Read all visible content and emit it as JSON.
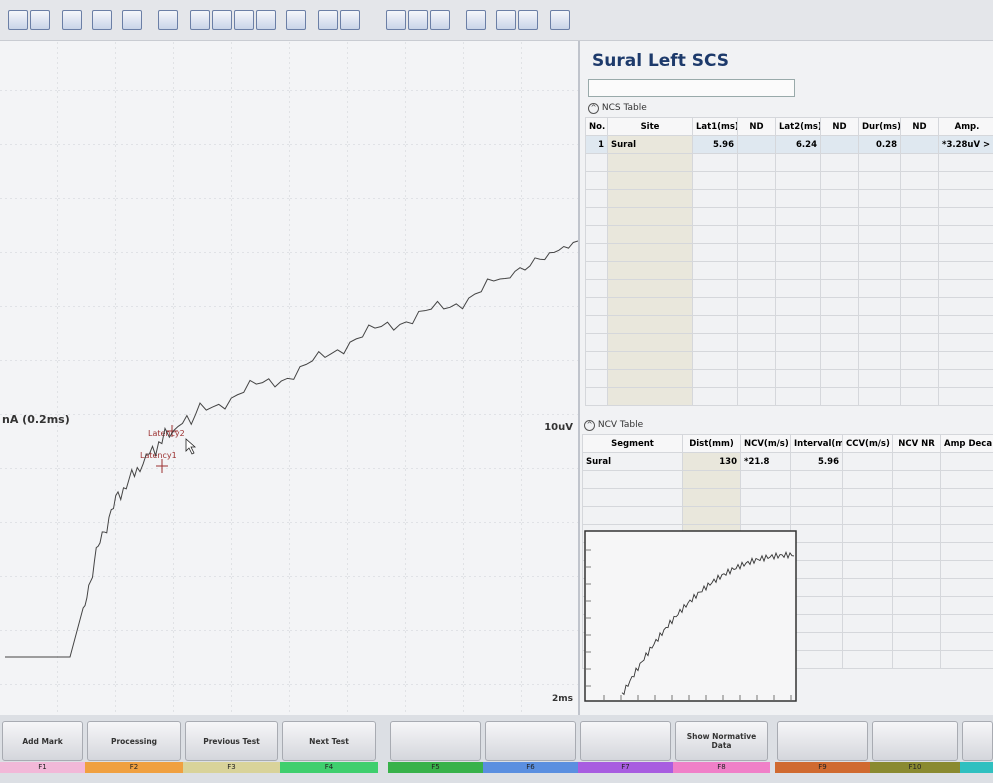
{
  "waveform": {
    "scale_label": "nA (0.2ms)",
    "amplitude_label": "10uV",
    "time_label": "2ms",
    "markers": [
      "Latency2",
      "Latency1"
    ]
  },
  "panel": {
    "title": "Sural Left SCS",
    "ncs_table": {
      "title": "NCS Table",
      "columns": [
        "No.",
        "Site",
        "Lat1(ms)",
        "ND",
        "Lat2(ms)",
        "ND",
        "Dur(ms)",
        "ND",
        "Amp."
      ],
      "rows": [
        {
          "no": 1,
          "site": "Sural",
          "lat1": 5.96,
          "lat2": 6.24,
          "dur": 0.28,
          "amp": "*3.28uV >"
        }
      ]
    },
    "ncv_table": {
      "title": "NCV Table",
      "columns": [
        "Segment",
        "Dist(mm)",
        "NCV(m/s)",
        "Interval(ms)",
        "CCV(m/s)",
        "NCV NR",
        "Amp Deca"
      ],
      "rows": [
        {
          "segment": "Sural",
          "dist": 130,
          "ncv": "*21.8",
          "interval": 5.96
        }
      ]
    }
  },
  "function_keys": [
    {
      "label": "Add Mark",
      "key": "F1"
    },
    {
      "label": "Processing",
      "key": "F2"
    },
    {
      "label": "Previous Test",
      "key": "F3"
    },
    {
      "label": "Next Test",
      "key": "F4"
    },
    {
      "key": "F5"
    },
    {
      "key": "F6"
    },
    {
      "key": "F7"
    },
    {
      "label": "Show Normative Data",
      "key": "F8"
    },
    {
      "key": "F9"
    },
    {
      "key": "F10"
    }
  ]
}
